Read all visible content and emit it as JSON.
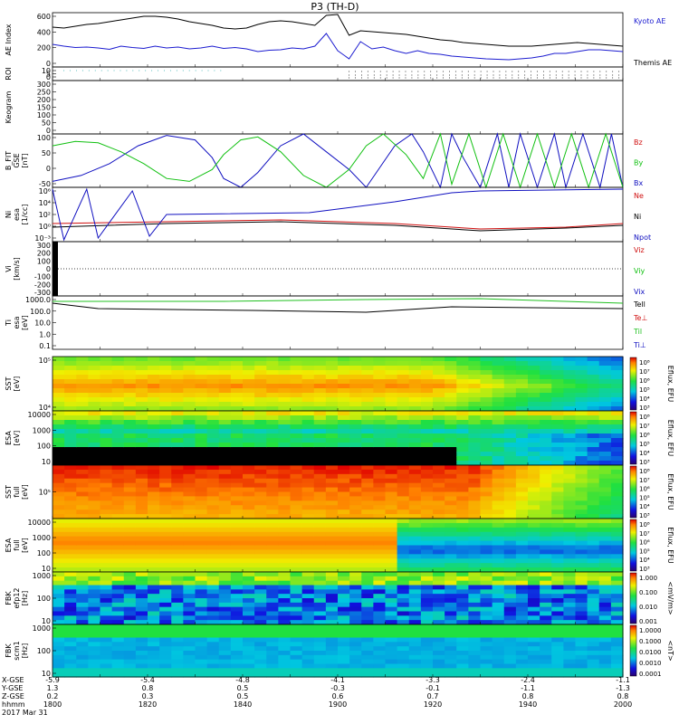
{
  "title": "P3 (TH-D)",
  "colors": {
    "ae_kyoto": "#1c1cd0",
    "ae_themis": "#000000",
    "bz": "#d01010",
    "by": "#10c010",
    "bx": "#1010c0",
    "ne": "#d01010",
    "ni": "#000000",
    "npot": "#1010c0",
    "tell": "#000000",
    "ti": "#20c020"
  },
  "chart_data": [
    {
      "id": "ae",
      "type": "line",
      "ylabel": "AE Index",
      "yticks": [
        "0",
        "200",
        "400",
        "600"
      ],
      "ylim": [
        0,
        600
      ],
      "legend": [
        {
          "name": "Kyoto AE",
          "color": "#1c1cd0"
        },
        {
          "name": "Themis AE",
          "color": "#000000"
        }
      ],
      "series": [
        {
          "name": "Kyoto AE",
          "color": "#1c1cd0",
          "x": [
            0,
            2,
            4,
            6,
            8,
            10,
            12,
            14,
            16,
            18,
            20,
            22,
            24,
            26,
            28,
            30,
            32,
            34,
            36,
            38,
            40,
            42,
            44,
            46,
            48,
            50,
            52,
            54,
            56,
            58,
            60,
            62,
            64,
            66,
            68,
            70,
            72,
            74,
            76,
            78,
            80,
            82,
            84,
            86,
            88,
            90,
            92,
            94,
            96,
            98,
            100
          ],
          "y": [
            250,
            230,
            215,
            220,
            210,
            195,
            230,
            215,
            205,
            230,
            210,
            220,
            200,
            210,
            230,
            205,
            215,
            200,
            170,
            185,
            190,
            210,
            200,
            230,
            370,
            180,
            90,
            280,
            200,
            220,
            180,
            150,
            180,
            150,
            140,
            120,
            110,
            100,
            90,
            85,
            80,
            90,
            100,
            120,
            150,
            150,
            170,
            190,
            190,
            180,
            170
          ]
        },
        {
          "name": "Themis AE",
          "color": "#000000",
          "x": [
            0,
            2,
            4,
            6,
            8,
            10,
            12,
            14,
            16,
            18,
            20,
            22,
            24,
            26,
            28,
            30,
            32,
            34,
            36,
            38,
            40,
            42,
            44,
            46,
            48,
            50,
            52,
            54,
            56,
            58,
            60,
            62,
            64,
            66,
            68,
            70,
            72,
            74,
            76,
            78,
            80,
            82,
            84,
            86,
            88,
            90,
            92,
            94,
            96,
            98,
            100
          ],
          "y": [
            440,
            430,
            450,
            470,
            480,
            500,
            520,
            540,
            560,
            560,
            550,
            530,
            500,
            480,
            460,
            430,
            420,
            430,
            470,
            500,
            510,
            500,
            480,
            460,
            570,
            580,
            350,
            400,
            390,
            380,
            370,
            360,
            340,
            320,
            300,
            290,
            270,
            260,
            250,
            240,
            230,
            230,
            230,
            240,
            250,
            260,
            270,
            260,
            250,
            240,
            230
          ]
        }
      ]
    },
    {
      "id": "roi",
      "type": "table",
      "ylabel": "ROI",
      "yticks": [
        "0",
        "5",
        "10"
      ]
    },
    {
      "id": "keogram",
      "type": "heatmap",
      "ylabel": "Keogram",
      "yticks": [
        "0",
        "50",
        "100",
        "150",
        "200",
        "250",
        "300"
      ],
      "ylim": [
        0,
        300
      ]
    },
    {
      "id": "bfit",
      "type": "line",
      "ylabel": "B_FIT\nGSE\n[nT]",
      "yticks": [
        "-50",
        "0",
        "50",
        "100"
      ],
      "ylim": [
        -80,
        100
      ],
      "legend": [
        {
          "name": "Bz",
          "color": "#d01010"
        },
        {
          "name": "By",
          "color": "#10c010"
        },
        {
          "name": "Bx",
          "color": "#1010c0"
        }
      ],
      "series": [
        {
          "name": "Bx",
          "color": "#1010c0",
          "x": [
            0,
            5,
            10,
            15,
            20,
            25,
            28,
            30,
            33,
            36,
            40,
            44,
            48,
            52,
            55,
            60,
            63,
            65,
            68,
            70,
            72,
            75,
            78,
            80,
            82,
            85,
            88,
            90,
            93,
            96,
            98,
            100
          ],
          "y": [
            -60,
            -40,
            0,
            60,
            95,
            80,
            20,
            -50,
            -80,
            -30,
            60,
            100,
            40,
            -20,
            -80,
            60,
            100,
            40,
            -80,
            100,
            20,
            -80,
            100,
            -80,
            100,
            -80,
            100,
            -80,
            100,
            -80,
            100,
            -80
          ]
        },
        {
          "name": "By",
          "color": "#10c010",
          "x": [
            0,
            4,
            8,
            12,
            16,
            20,
            24,
            28,
            30,
            33,
            36,
            40,
            44,
            48,
            52,
            55,
            58,
            62,
            65,
            68,
            70,
            73,
            76,
            79,
            82,
            85,
            88,
            91,
            94,
            97,
            100
          ],
          "y": [
            60,
            75,
            70,
            40,
            0,
            -50,
            -60,
            -20,
            30,
            80,
            90,
            40,
            -40,
            -80,
            -20,
            60,
            100,
            30,
            -50,
            100,
            -70,
            100,
            -80,
            100,
            -80,
            100,
            -80,
            100,
            -80,
            100,
            -80
          ]
        }
      ]
    },
    {
      "id": "density",
      "type": "line",
      "ylabel": "Ni\nesa\n[1/cc]",
      "yticks": [
        "10⁻³",
        "10⁰",
        "10²",
        "10⁴",
        "10⁶"
      ],
      "legend": [
        {
          "name": "Ne",
          "color": "#d01010"
        },
        {
          "name": "Ni",
          "color": "#000000"
        },
        {
          "name": "Npot",
          "color": "#1010c0"
        }
      ]
    },
    {
      "id": "velocity",
      "type": "line",
      "ylabel": "Vi\n[km/s]",
      "yticks": [
        "-300",
        "-200",
        "-100",
        "0",
        "100",
        "200",
        "300"
      ],
      "ylim": [
        -300,
        300
      ],
      "legend": [
        {
          "name": "Viz",
          "color": "#d01010"
        },
        {
          "name": "Viy",
          "color": "#10c010"
        },
        {
          "name": "Vix",
          "color": "#1010c0"
        }
      ]
    },
    {
      "id": "temperature",
      "type": "line",
      "ylabel": "Ti\nesa\n[eV]",
      "yticks": [
        "0.1",
        "1.0",
        "10.0",
        "100.0",
        "1000.0"
      ],
      "legend": [
        {
          "name": "Tell",
          "color": "#000000"
        },
        {
          "name": "Te⊥",
          "color": "#d01010"
        },
        {
          "name": "Til",
          "color": "#20c020"
        },
        {
          "name": "Ti⊥",
          "color": "#1010c0"
        }
      ]
    },
    {
      "id": "sst_e",
      "type": "heatmap",
      "ylabel": "SST\n[eV]",
      "yticks": [
        "10⁴",
        "10⁵"
      ],
      "cbar": [
        "10⁸",
        "10⁷",
        "10⁶",
        "10⁵",
        "10⁴",
        "10³"
      ],
      "cbar_label": "Eflux, EFU"
    },
    {
      "id": "esa_e",
      "type": "heatmap",
      "ylabel": "ESA\n[eV]",
      "yticks": [
        "10",
        "100",
        "1000",
        "10000"
      ],
      "cbar": [
        "10⁸",
        "10⁷",
        "10⁶",
        "10⁵",
        "10⁴",
        "10³"
      ],
      "cbar_label": "Eflux, EFU"
    },
    {
      "id": "sst_i",
      "type": "heatmap",
      "ylabel": "SST\nfull\n[eV]",
      "yticks": [
        "10⁵"
      ],
      "cbar": [
        "10⁸",
        "10⁷",
        "10⁶",
        "10⁵",
        "10⁴",
        "10³"
      ],
      "cbar_label": "Eflux, EFU"
    },
    {
      "id": "esa_i",
      "type": "heatmap",
      "ylabel": "ESA\nfull\n[eV]",
      "yticks": [
        "10",
        "100",
        "1000",
        "10000"
      ],
      "cbar": [
        "10⁸",
        "10⁷",
        "10⁶",
        "10⁵",
        "10⁴",
        "10³"
      ],
      "cbar_label": "Eflux, EFU"
    },
    {
      "id": "fbk_e",
      "type": "heatmap",
      "ylabel": "FBK\nefp12\n[Hz]",
      "yticks": [
        "10",
        "100",
        "1000"
      ],
      "cbar": [
        "1.000",
        "0.100",
        "0.010",
        "0.001"
      ],
      "cbar_label": "<mV/m>"
    },
    {
      "id": "fbk_b",
      "type": "heatmap",
      "ylabel": "FBK\nscm1\n[Hz]",
      "yticks": [
        "10",
        "100",
        "1000"
      ],
      "cbar": [
        "1.0000",
        "0.1000",
        "0.0100",
        "0.0010",
        "0.0001"
      ],
      "cbar_label": "<nT>"
    }
  ],
  "xaxis": {
    "row_labels": [
      "X-GSE",
      "Y-GSE",
      "Z-GSE",
      "hhmm",
      "2017 Mar 31"
    ],
    "ticks": [
      {
        "v": [
          "-5.9",
          "1.3",
          "0.2",
          "1800"
        ]
      },
      {
        "v": [
          "-5.4",
          "0.8",
          "0.3",
          "1820"
        ]
      },
      {
        "v": [
          "-4.8",
          "0.5",
          "0.5",
          "1840"
        ]
      },
      {
        "v": [
          "-4.1",
          "-0.3",
          "0.6",
          "1900"
        ]
      },
      {
        "v": [
          "-3.3",
          "-0.1",
          "0.7",
          "1920"
        ]
      },
      {
        "v": [
          "-2.4",
          "-1.1",
          "0.8",
          "1940"
        ]
      },
      {
        "v": [
          "-1.1",
          "-1.3",
          "0.8",
          "2000"
        ]
      }
    ]
  }
}
